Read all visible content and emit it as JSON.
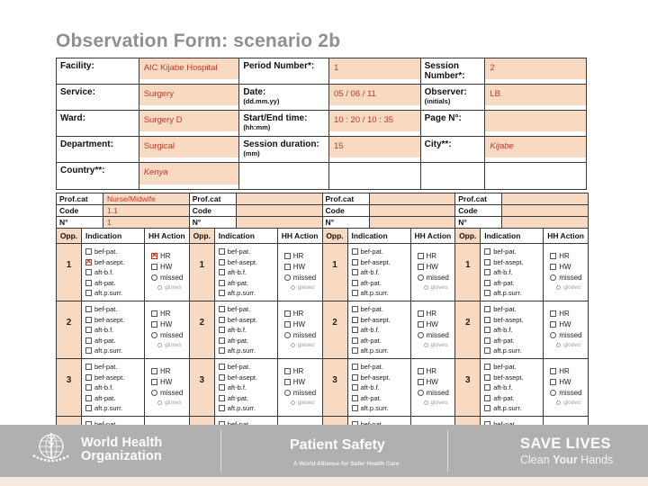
{
  "title": "Observation Form: scenario 2b",
  "colors": {
    "peach": "#f8d9c1",
    "handwriting_red": "#c0392b",
    "footer_grey": "#b1b0b0",
    "title_grey": "#8f8f8f"
  },
  "form": {
    "rows": [
      {
        "cells": [
          {
            "text": "Facility:"
          },
          {
            "text": "AIC Kijabe Hospital"
          },
          {
            "text": "Period Number*:"
          },
          {
            "text": "1"
          },
          {
            "text": "Session Number*:"
          },
          {
            "text": "2"
          }
        ]
      },
      {
        "cells": [
          {
            "text": "Service:"
          },
          {
            "text": "Surgery"
          },
          {
            "text": "Date:",
            "sub": "(dd.mm.yy)"
          },
          {
            "text": "05 / 06 / 11"
          },
          {
            "text": "Observer:",
            "sub": "(initials)"
          },
          {
            "text": "LB"
          }
        ]
      },
      {
        "cells": [
          {
            "text": "Ward:"
          },
          {
            "text": "Surgery D"
          },
          {
            "text": "Start/End time:",
            "sub": "(hh:mm)"
          },
          {
            "text": "10 : 20 / 10 : 35"
          },
          {
            "text": "Page N°:"
          },
          {
            "text": ""
          }
        ]
      },
      {
        "cells": [
          {
            "text": "Department:"
          },
          {
            "text": "Surgical"
          },
          {
            "text": "Session duration:",
            "sub": "(mm)"
          },
          {
            "text": "15"
          },
          {
            "text": "City**:"
          },
          {
            "text": "Kijabe",
            "italic": true
          }
        ]
      },
      {
        "cells": [
          {
            "text": "Country**:"
          },
          {
            "text": "Kenya",
            "italic": true
          },
          {
            "text": "",
            "nofill": true
          },
          {
            "text": "",
            "nofill": true
          },
          {
            "text": "",
            "nofill": true
          },
          {
            "text": "",
            "nofill": true
          }
        ]
      }
    ]
  },
  "obs": {
    "labels": {
      "profcat": "Prof.cat",
      "code": "Code",
      "n": "N°",
      "opp": "Opp.",
      "indication": "Indication",
      "action": "HH Action"
    },
    "indication_labels": [
      "bef-pat.",
      "bef-asept.",
      "aft-b.f.",
      "aft-pat.",
      "aft.p.surr."
    ],
    "action_labels": [
      "HR",
      "HW",
      "missed",
      "gloves"
    ],
    "groups": [
      {
        "profcat": "Nurse/Midwife",
        "code": "1.1",
        "n": "1",
        "rows": [
          {
            "opp": "1",
            "checked_indications": [
              1
            ],
            "checked_actions": [
              0
            ]
          },
          {
            "opp": "2",
            "checked_indications": [],
            "checked_actions": []
          },
          {
            "opp": "3",
            "checked_indications": [],
            "checked_actions": []
          },
          {
            "opp": "",
            "partial": true,
            "checked_indications": [],
            "checked_actions": []
          }
        ]
      },
      {
        "profcat": "",
        "code": "",
        "n": "",
        "rows": [
          {
            "opp": "1",
            "checked_indications": [],
            "checked_actions": []
          },
          {
            "opp": "2",
            "checked_indications": [],
            "checked_actions": []
          },
          {
            "opp": "3",
            "checked_indications": [],
            "checked_actions": []
          },
          {
            "opp": "",
            "partial": true,
            "checked_indications": [],
            "checked_actions": []
          }
        ]
      },
      {
        "profcat": "",
        "code": "",
        "n": "",
        "rows": [
          {
            "opp": "1",
            "checked_indications": [],
            "checked_actions": []
          },
          {
            "opp": "2",
            "checked_indications": [],
            "checked_actions": []
          },
          {
            "opp": "3",
            "checked_indications": [],
            "checked_actions": []
          },
          {
            "opp": "",
            "partial": true,
            "checked_indications": [],
            "checked_actions": []
          }
        ]
      },
      {
        "profcat": "",
        "code": "",
        "n": "",
        "rows": [
          {
            "opp": "1",
            "checked_indications": [],
            "checked_actions": []
          },
          {
            "opp": "2",
            "checked_indications": [],
            "checked_actions": []
          },
          {
            "opp": "3",
            "checked_indications": [],
            "checked_actions": []
          },
          {
            "opp": "",
            "partial": true,
            "checked_indications": [],
            "checked_actions": []
          }
        ]
      }
    ]
  },
  "footer": {
    "who_line1": "World Health",
    "who_line2": "Organization",
    "patient_safety": "Patient Safety",
    "alliance": "A World Alliance for Safer Health Care",
    "save_lives": "SAVE LIVES",
    "clean": [
      "Clean ",
      "Your",
      " Hands"
    ]
  }
}
